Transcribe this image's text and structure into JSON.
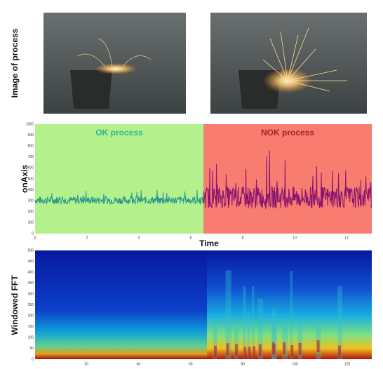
{
  "images_panel": {
    "label": "Image of process"
  },
  "signal_panel": {
    "ylabel": "onAxis",
    "xlabel": "Time",
    "ok_label": "OK process",
    "nok_label": "NOK process",
    "yticks": [
      "0",
      "100",
      "200",
      "300",
      "400",
      "500",
      "600",
      "700",
      "800",
      "900",
      "1000"
    ],
    "xticks": [
      "0",
      "2",
      "4",
      "6",
      "8",
      "10",
      "12"
    ]
  },
  "fft_panel": {
    "ylabel": "Windowed FFT",
    "yticks": [
      "0",
      "50",
      "100",
      "150",
      "200",
      "250",
      "300",
      "350",
      "400",
      "450",
      "500"
    ],
    "xticks": [
      "20",
      "40",
      "60",
      "80",
      "100",
      "120"
    ]
  }
}
